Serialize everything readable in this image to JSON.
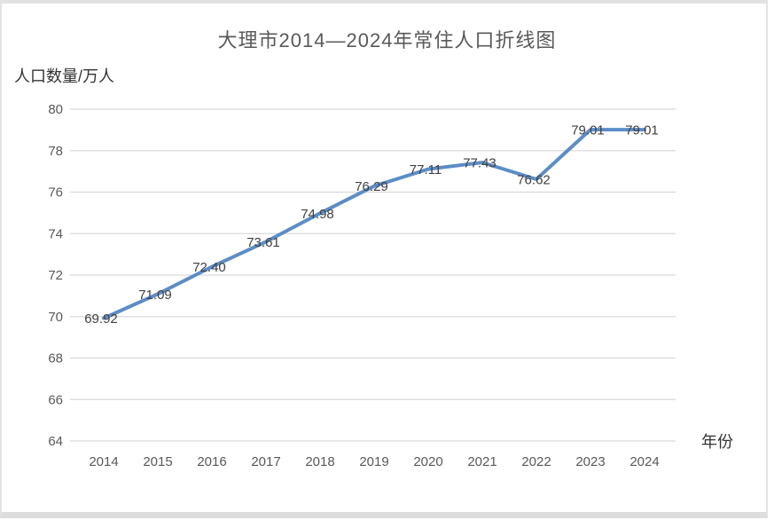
{
  "page": {
    "background": "#ffffff",
    "frame_border_color": "#e2e2e2"
  },
  "chart_data": {
    "type": "line",
    "title": "大理市2014—2024年常住人口折线图",
    "y_axis_title": "人口数量/万人",
    "x_axis_title": "年份",
    "categories": [
      "2014",
      "2015",
      "2016",
      "2017",
      "2018",
      "2019",
      "2020",
      "2021",
      "2022",
      "2023",
      "2024"
    ],
    "series": [
      {
        "values": [
          69.92,
          71.09,
          72.4,
          73.61,
          74.98,
          76.29,
          77.11,
          77.43,
          76.62,
          79.01,
          79.01
        ],
        "labels": [
          "69.92",
          "71.09",
          "72.40",
          "73.61",
          "74.98",
          "76.29",
          "77.11",
          "77.43",
          "76.62",
          "79.01",
          "79.01"
        ]
      }
    ],
    "ylim": [
      64,
      80
    ],
    "ytick_labels": [
      "80",
      "78",
      "76",
      "74",
      "72",
      "70",
      "68",
      "66",
      "64"
    ],
    "grid": true,
    "legend_position": "none",
    "colors": {
      "line": "#5c8dc7",
      "grid": "#d9d9d9",
      "tick_text": "#595959",
      "data_label_text": "#404040",
      "title_text": "#595959",
      "axis_title_text": "#333333"
    }
  }
}
